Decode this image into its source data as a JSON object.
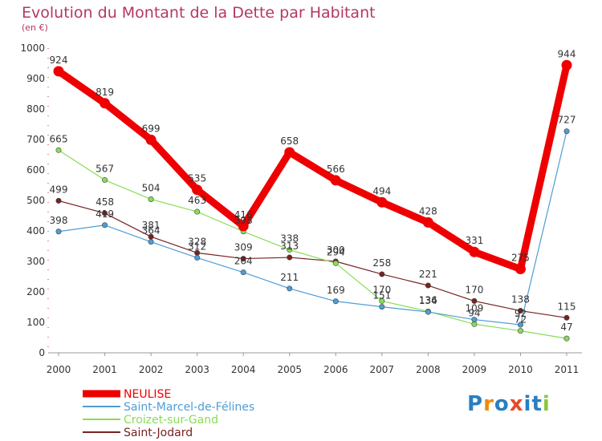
{
  "title": "Evolution du Montant de la Dette par Habitant",
  "subtitle": "(en €)",
  "logo_text": "Proxiti",
  "chart_data": {
    "type": "line",
    "title": "Evolution du Montant de la Dette par Habitant",
    "subtitle": "(en €)",
    "xlabel": "",
    "ylabel": "",
    "x": [
      2000,
      2001,
      2002,
      2003,
      2004,
      2005,
      2006,
      2007,
      2008,
      2009,
      2010,
      2011
    ],
    "ylim": [
      0,
      1000
    ],
    "yticks": [
      0,
      100,
      200,
      300,
      400,
      500,
      600,
      700,
      800,
      900,
      1000
    ],
    "grid": false,
    "legend_position": "bottom-left",
    "series": [
      {
        "name": "NEULISE",
        "color": "#ee0000",
        "values": [
          924,
          819,
          699,
          535,
          416,
          658,
          566,
          494,
          428,
          331,
          275,
          944
        ]
      },
      {
        "name": "Saint-Marcel-de-Félines",
        "color": "#4f9dd4",
        "values": [
          398,
          419,
          364,
          312,
          264,
          211,
          169,
          151,
          134,
          109,
          92,
          727
        ]
      },
      {
        "name": "Croizet-sur-Gand",
        "color": "#88dd55",
        "values": [
          665,
          567,
          504,
          463,
          398,
          338,
          294,
          170,
          136,
          94,
          72,
          47
        ]
      },
      {
        "name": "Saint-Jodard",
        "color": "#772222",
        "values": [
          499,
          458,
          381,
          328,
          309,
          313,
          300,
          258,
          221,
          170,
          138,
          115
        ]
      }
    ]
  }
}
